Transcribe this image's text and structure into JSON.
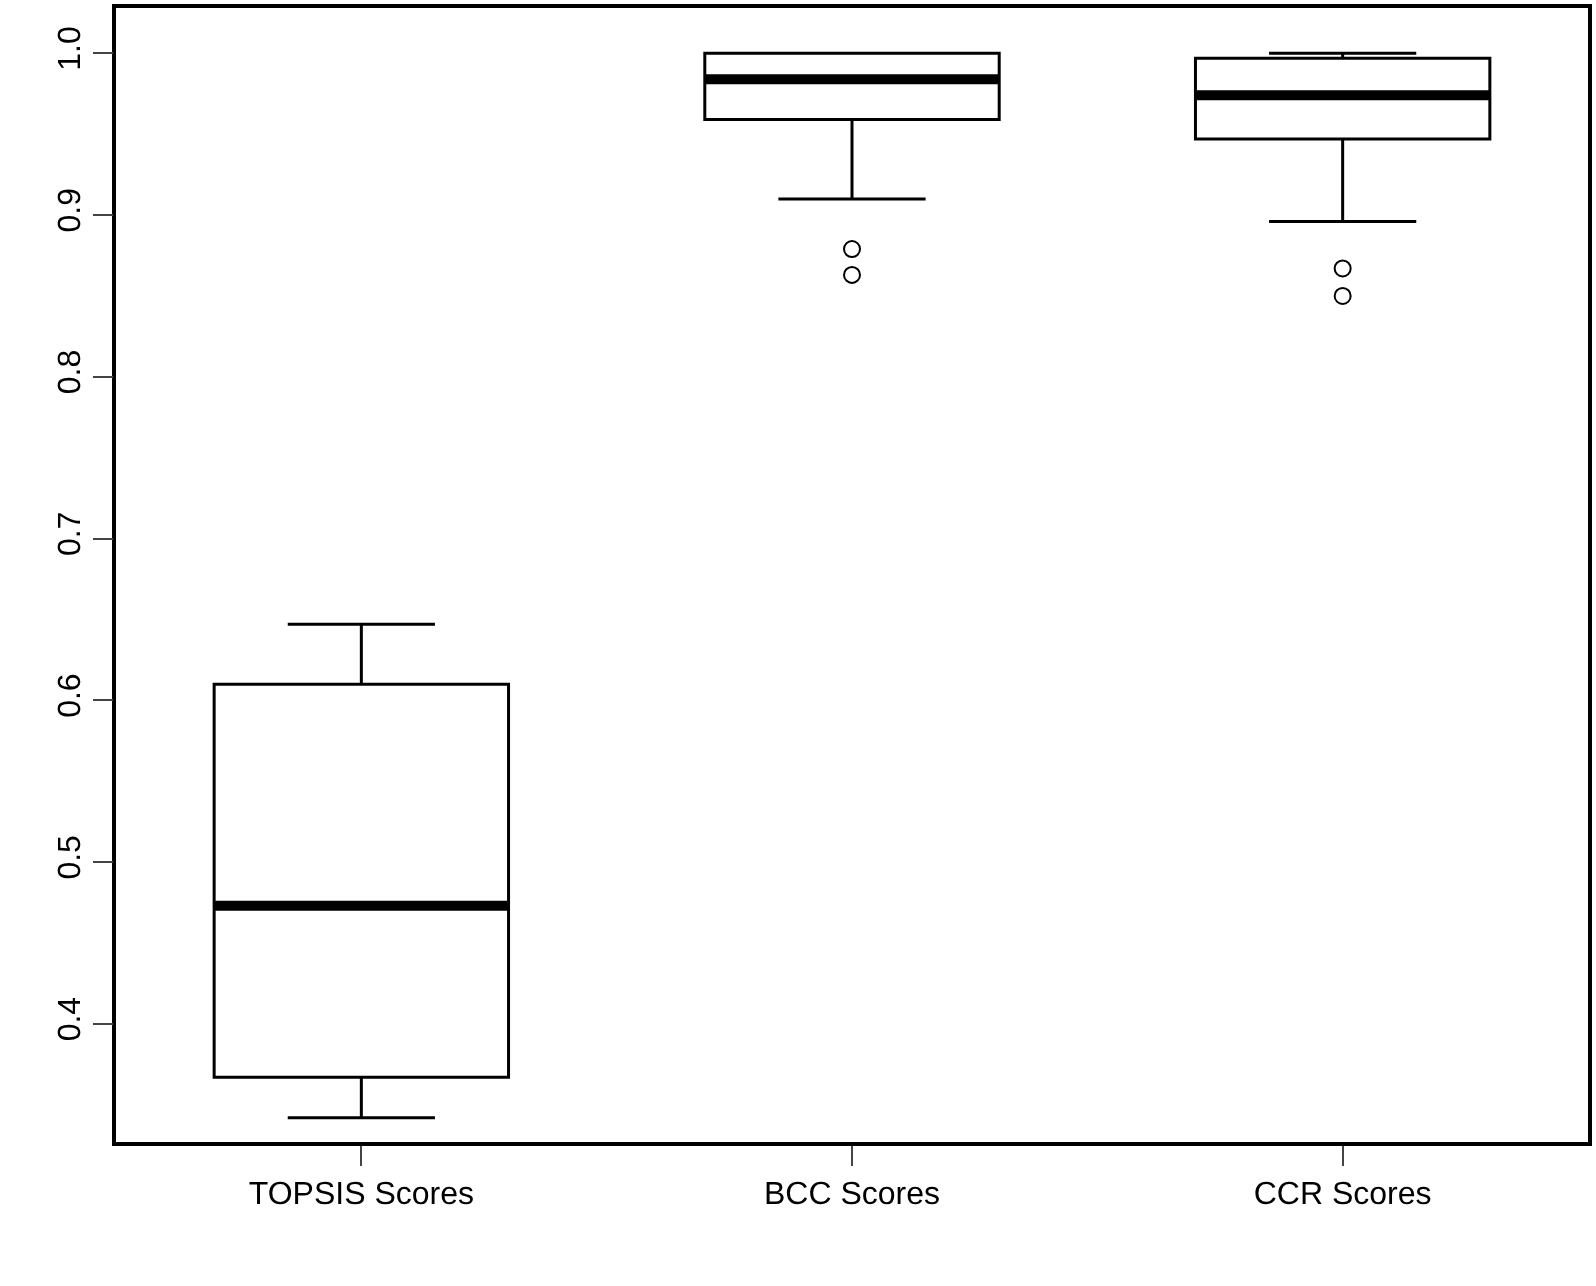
{
  "chart_data": {
    "type": "box",
    "categories": [
      "TOPSIS Scores",
      "BCC Scores",
      "CCR Scores"
    ],
    "boxes": [
      {
        "low": 0.342,
        "q1": 0.367,
        "median": 0.473,
        "q3": 0.61,
        "high": 0.647
      },
      {
        "low": 0.91,
        "q1": 0.959,
        "median": 0.984,
        "q3": 1.0,
        "high": 1.0,
        "outliers": [
          0.879,
          0.863
        ]
      },
      {
        "low": 0.896,
        "q1": 0.947,
        "median": 0.974,
        "q3": 0.997,
        "high": 1.0,
        "outliers": [
          0.867,
          0.85
        ]
      }
    ],
    "color": "#000000",
    "ylim": [
      0.327,
      1.028
    ],
    "yticks": [
      0.4,
      0.5,
      0.6,
      0.7,
      0.8,
      0.9,
      {
        "value": 1.0,
        "label": "1.0"
      }
    ]
  }
}
